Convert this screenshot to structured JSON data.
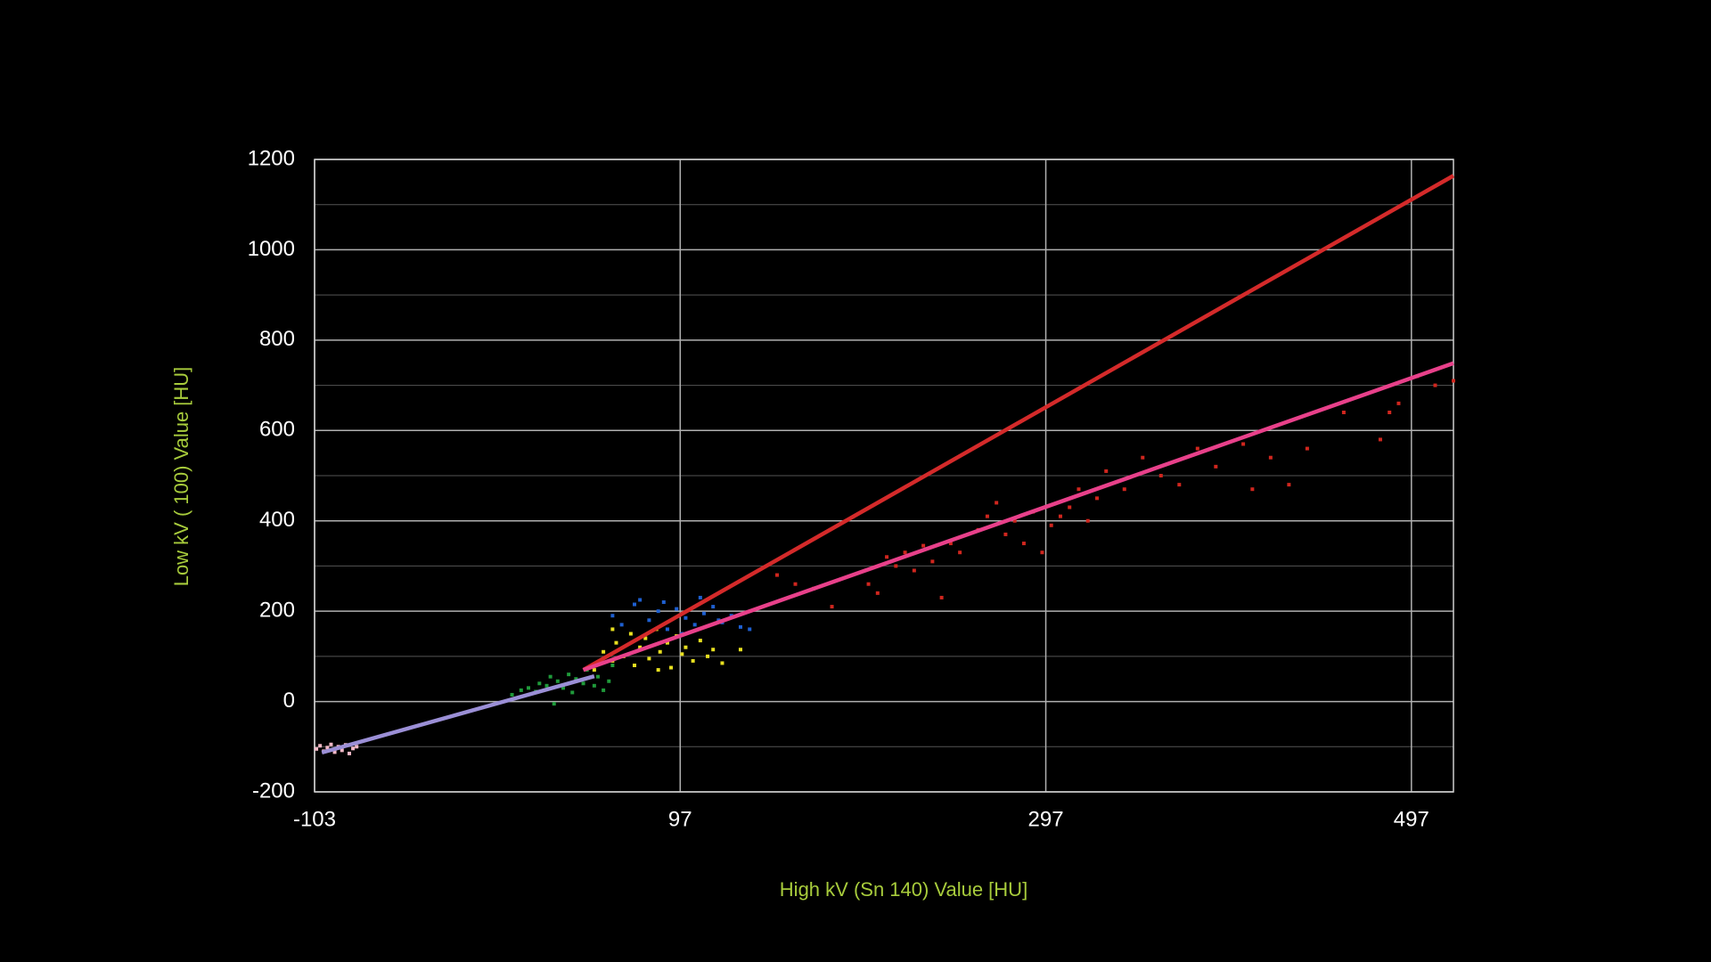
{
  "chart_data": {
    "type": "scatter",
    "xlabel": "High kV (Sn 140) Value [HU]",
    "ylabel": "Low kV ( 100) Value [HU]",
    "xlim": [
      -103,
      520
    ],
    "ylim": [
      -200,
      1200
    ],
    "xticks": [
      -103,
      97,
      297,
      497
    ],
    "yticks": [
      -200,
      0,
      200,
      400,
      600,
      800,
      1000,
      1200
    ],
    "grid": true,
    "series": [
      {
        "kind": "points",
        "color": "#f2b8c6",
        "x": [
          -102,
          -100,
          -98,
          -96,
          -94,
          -92,
          -90,
          -88,
          -86,
          -84,
          -82,
          -80
        ],
        "y": [
          -105,
          -98,
          -110,
          -102,
          -95,
          -112,
          -100,
          -108,
          -96,
          -115,
          -104,
          -100
        ]
      },
      {
        "kind": "points",
        "color": "#1f9a3a",
        "x": [
          5,
          10,
          14,
          18,
          20,
          24,
          26,
          30,
          33,
          36,
          38,
          40,
          44,
          46,
          50,
          52,
          55,
          58,
          60,
          28
        ],
        "y": [
          15,
          25,
          30,
          22,
          40,
          35,
          55,
          45,
          30,
          60,
          20,
          50,
          40,
          70,
          35,
          55,
          25,
          45,
          80,
          -5
        ]
      },
      {
        "kind": "points",
        "color": "#1e5fd0",
        "x": [
          60,
          65,
          72,
          80,
          85,
          90,
          95,
          100,
          105,
          110,
          115,
          120,
          125,
          130,
          88,
          98,
          108,
          118,
          75,
          135
        ],
        "y": [
          190,
          170,
          215,
          180,
          200,
          160,
          205,
          185,
          170,
          195,
          210,
          175,
          190,
          165,
          220,
          150,
          230,
          180,
          225,
          160
        ]
      },
      {
        "kind": "points",
        "color": "#e8e020",
        "x": [
          50,
          55,
          60,
          62,
          66,
          70,
          72,
          75,
          78,
          80,
          84,
          86,
          90,
          92,
          95,
          98,
          100,
          104,
          108,
          112,
          115,
          120,
          60,
          85,
          130
        ],
        "y": [
          70,
          110,
          90,
          130,
          100,
          150,
          80,
          120,
          140,
          95,
          160,
          110,
          130,
          75,
          145,
          105,
          120,
          90,
          135,
          100,
          115,
          85,
          160,
          70,
          115
        ]
      },
      {
        "kind": "points",
        "color": "#d0261e",
        "x": [
          150,
          160,
          170,
          180,
          200,
          205,
          210,
          215,
          220,
          225,
          230,
          235,
          240,
          245,
          250,
          260,
          265,
          270,
          275,
          280,
          285,
          290,
          295,
          300,
          305,
          310,
          315,
          320,
          325,
          330,
          340,
          350,
          360,
          370,
          380,
          390,
          405,
          410,
          420,
          430,
          440,
          460,
          480,
          485,
          490,
          500,
          510,
          520
        ],
        "y": [
          280,
          260,
          250,
          210,
          260,
          240,
          320,
          300,
          330,
          290,
          345,
          310,
          230,
          350,
          330,
          380,
          410,
          440,
          370,
          400,
          350,
          420,
          330,
          390,
          410,
          430,
          470,
          400,
          450,
          510,
          470,
          540,
          500,
          480,
          560,
          520,
          570,
          470,
          540,
          480,
          560,
          640,
          580,
          640,
          660,
          720,
          700,
          710
        ]
      },
      {
        "kind": "line",
        "color": "#d42a2a",
        "x": [
          44,
          520
        ],
        "y": [
          70,
          1164
        ]
      },
      {
        "kind": "line",
        "color": "#e8408a",
        "x": [
          44,
          520
        ],
        "y": [
          70,
          749
        ]
      },
      {
        "kind": "line",
        "color": "#9b8fd6",
        "x": [
          -99,
          50
        ],
        "y": [
          -113,
          56
        ]
      }
    ]
  }
}
